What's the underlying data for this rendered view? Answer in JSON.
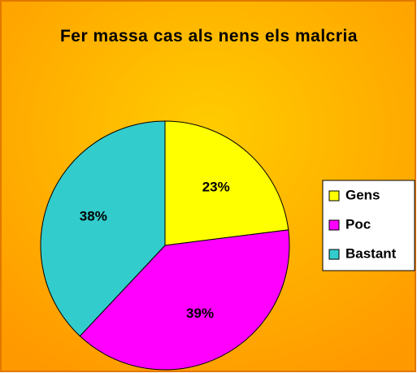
{
  "chart_data": {
    "type": "pie",
    "title": "Fer massa cas als nens els malcria",
    "categories": [
      "Gens",
      "Poc",
      "Bastant"
    ],
    "values": [
      23,
      39,
      38
    ],
    "value_labels": [
      "23%",
      "39%",
      "38%"
    ],
    "colors": [
      "#ffff00",
      "#ff00ff",
      "#33cccc"
    ],
    "legend": "right"
  }
}
